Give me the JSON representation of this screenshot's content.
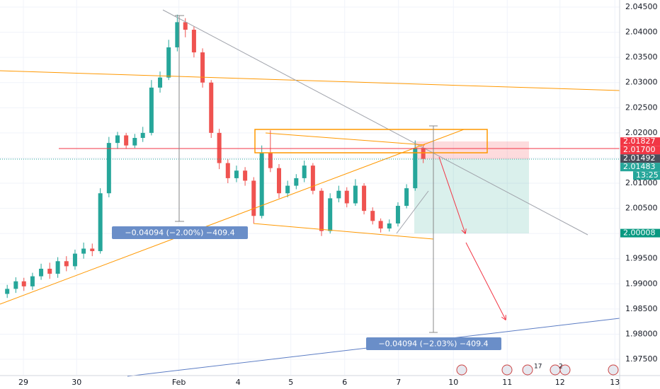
{
  "chart_data": {
    "type": "candlestick",
    "x": [
      -0.3,
      -0.14,
      0.01,
      0.17,
      0.33,
      0.49,
      0.64,
      0.8,
      0.96,
      1.12,
      1.28,
      1.43,
      1.59,
      1.75,
      1.91,
      2.07,
      2.22,
      2.38,
      2.54,
      2.7,
      2.86,
      3.01,
      3.17,
      3.33,
      3.49,
      3.64,
      3.8,
      3.96,
      4.12,
      4.28,
      4.43,
      4.59,
      4.75,
      4.91,
      5.07,
      5.22,
      5.38,
      5.54,
      5.7,
      5.86,
      6.01,
      6.17,
      6.33,
      6.49,
      6.64,
      6.8,
      6.96,
      7.12,
      7.28,
      7.43
    ],
    "open": [
      1.988,
      1.989,
      1.9905,
      1.9895,
      1.9915,
      1.993,
      1.992,
      1.9945,
      1.9935,
      1.996,
      1.997,
      1.9965,
      2.008,
      2.018,
      2.0195,
      2.0175,
      2.019,
      2.02,
      2.029,
      2.031,
      2.037,
      2.042,
      2.0405,
      2.036,
      2.03,
      2.02,
      2.014,
      2.011,
      2.0125,
      2.0105,
      2.0035,
      2.016,
      2.013,
      2.008,
      2.0095,
      2.011,
      2.0135,
      2.0085,
      2.0005,
      2.007,
      2.0085,
      2.006,
      2.0095,
      2.0045,
      2.0025,
      2.001,
      2.002,
      2.0055,
      2.009,
      2.017
    ],
    "high": [
      1.9898,
      1.9913,
      1.9912,
      1.9922,
      1.994,
      1.9942,
      1.9953,
      1.9955,
      1.9968,
      1.9982,
      1.998,
      2.009,
      2.0192,
      2.0202,
      2.02,
      2.0198,
      2.0212,
      2.0305,
      2.0322,
      2.0385,
      2.0435,
      2.0428,
      2.0412,
      2.0368,
      2.0305,
      2.0208,
      2.0148,
      2.0135,
      2.0132,
      2.0112,
      2.0175,
      2.0205,
      2.0138,
      2.0105,
      2.0118,
      2.0145,
      2.014,
      2.009,
      2.008,
      2.0095,
      2.0092,
      2.0108,
      2.01,
      2.0052,
      2.003,
      2.0028,
      2.0062,
      2.0098,
      2.0185,
      2.0176
    ],
    "low": [
      1.9872,
      1.9882,
      1.9886,
      1.9888,
      1.9908,
      1.991,
      1.9912,
      1.9925,
      1.9928,
      1.995,
      1.9955,
      1.996,
      2.0072,
      2.0168,
      2.0168,
      2.017,
      2.0182,
      2.0195,
      2.028,
      2.0305,
      2.0362,
      2.039,
      2.035,
      2.029,
      2.019,
      2.0128,
      2.01,
      2.0102,
      2.0095,
      2.002,
      2.003,
      2.0122,
      2.007,
      2.0072,
      2.0088,
      2.0102,
      2.0078,
      1.9995,
      2.0,
      2.0062,
      2.0052,
      2.0055,
      2.0038,
      2.0018,
      2.0002,
      2.0004,
      2.0014,
      2.005,
      2.0085,
      2.014
    ],
    "close": [
      1.989,
      1.9905,
      1.9895,
      1.9915,
      1.993,
      1.992,
      1.9945,
      1.9935,
      1.996,
      1.997,
      1.9965,
      2.008,
      2.018,
      2.0195,
      2.0175,
      2.019,
      2.02,
      2.029,
      2.031,
      2.037,
      2.042,
      2.0405,
      2.036,
      2.03,
      2.02,
      2.014,
      2.011,
      2.0125,
      2.0105,
      2.0035,
      2.016,
      2.013,
      2.008,
      2.0095,
      2.011,
      2.0135,
      2.0085,
      2.0005,
      2.007,
      2.0085,
      2.006,
      2.0095,
      2.0045,
      2.0025,
      2.001,
      2.002,
      2.0055,
      2.009,
      2.017,
      2.01483
    ],
    "up_color": "#26a69a",
    "down_color": "#ef5350",
    "xlim": [
      -0.434,
      11.079
    ],
    "xticks": [
      {
        "value": 0,
        "label": "29"
      },
      {
        "value": 0.99,
        "label": "30"
      },
      {
        "value": 2.89,
        "label": "Feb"
      },
      {
        "value": 3.99,
        "label": "4"
      },
      {
        "value": 4.97,
        "label": "5"
      },
      {
        "value": 5.97,
        "label": "6"
      },
      {
        "value": 6.97,
        "label": "7"
      },
      {
        "value": 7.99,
        "label": "10"
      },
      {
        "value": 8.99,
        "label": "11"
      },
      {
        "value": 9.97,
        "label": "12"
      },
      {
        "value": 10.99,
        "label": "13"
      }
    ],
    "ylim": [
      1.97191,
      2.04641
    ],
    "yticks": [
      {
        "value": 1.975,
        "label": "1.97500"
      },
      {
        "value": 1.98,
        "label": "1.98000"
      },
      {
        "value": 1.985,
        "label": "1.98500"
      },
      {
        "value": 1.99,
        "label": "1.99000"
      },
      {
        "value": 1.995,
        "label": "1.99500"
      },
      {
        "value": 2.0,
        "label": "2.00000"
      },
      {
        "value": 2.005,
        "label": "2.00500"
      },
      {
        "value": 2.01,
        "label": "2.01000"
      },
      {
        "value": 2.015,
        "label": "2.01500"
      },
      {
        "value": 2.02,
        "label": "2.02000"
      },
      {
        "value": 2.025,
        "label": "2.02500"
      },
      {
        "value": 2.03,
        "label": "2.03000"
      },
      {
        "value": 2.035,
        "label": "2.03500"
      },
      {
        "value": 2.04,
        "label": "2.04000"
      },
      {
        "value": 2.045,
        "label": "2.04500"
      }
    ],
    "grid": true,
    "price_labels": [
      {
        "value": 2.01827,
        "label": "2.01827",
        "color": "#f23645"
      },
      {
        "value": 2.017,
        "label": "2.01700",
        "color": "#f23645"
      },
      {
        "value": 2.01492,
        "label": "2.01492",
        "color": "#4a4e5a"
      },
      {
        "value": 2.01483,
        "label": "2.01483",
        "color": "#26a69a"
      }
    ],
    "countdown": "13:25",
    "target_label": {
      "value": 2.00008,
      "label": "2.00008",
      "color": "#089981"
    },
    "measurements": [
      "−0.04094 (−2.00%) −409.4",
      "−0.04094 (−2.03%) −409.4"
    ],
    "event_badges": [
      "17",
      "2"
    ]
  }
}
